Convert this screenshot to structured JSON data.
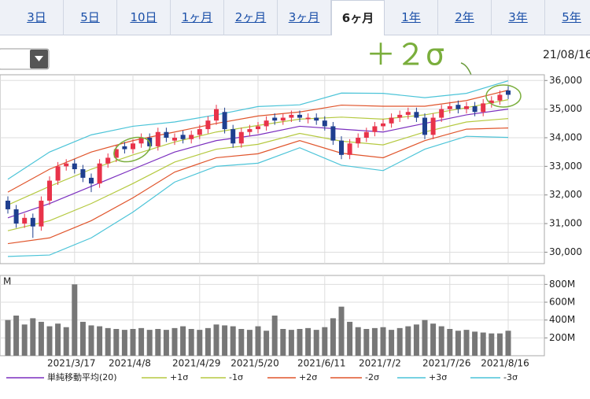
{
  "tabs": [
    "3日",
    "5日",
    "10日",
    "1ヶ月",
    "2ヶ月",
    "3ヶ月",
    "6ヶ月",
    "1年",
    "2年",
    "3年",
    "5年"
  ],
  "selected_tab": 6,
  "date": "21/08/16",
  "annotation": "＋２σ",
  "chart_data": [
    {
      "type": "candlestick",
      "categories": [
        null,
        null,
        null,
        null,
        null,
        null,
        null,
        null,
        "2021/3/17",
        null,
        null,
        null,
        null,
        null,
        null,
        "2021/4/8",
        null,
        null,
        null,
        null,
        null,
        null,
        null,
        "2021/4/29",
        null,
        null,
        null,
        null,
        null,
        null,
        "2021/5/20",
        null,
        null,
        null,
        null,
        null,
        null,
        null,
        "2021/6/11",
        null,
        null,
        null,
        null,
        null,
        null,
        "2021/7/2",
        null,
        null,
        null,
        null,
        null,
        null,
        null,
        "2021/7/26",
        null,
        null,
        null,
        null,
        null,
        null,
        "2021/8/16"
      ],
      "open": [
        31800,
        31500,
        31000,
        31200,
        30900,
        31800,
        32500,
        33000,
        33100,
        32900,
        32600,
        32400,
        33100,
        33300,
        33700,
        33600,
        33800,
        34000,
        33700,
        34200,
        33900,
        34100,
        33950,
        34100,
        34300,
        34600,
        34900,
        34300,
        33800,
        34200,
        34300,
        34400,
        34700,
        34600,
        34700,
        34800,
        34650,
        34700,
        34600,
        34400,
        33900,
        33400,
        33800,
        34000,
        34200,
        34400,
        34500,
        34700,
        34800,
        34900,
        34700,
        34100,
        34700,
        35000,
        35150,
        35000,
        35100,
        34900,
        35200,
        35300,
        35650
      ],
      "high": [
        31950,
        31650,
        31350,
        31350,
        31950,
        32650,
        33150,
        33250,
        33250,
        33050,
        32750,
        33250,
        33450,
        33750,
        33850,
        33950,
        34150,
        34150,
        34350,
        34350,
        34150,
        34250,
        34250,
        34450,
        34750,
        35150,
        35050,
        34450,
        34350,
        34450,
        34550,
        34750,
        34850,
        34850,
        34950,
        34950,
        34850,
        34850,
        34750,
        34550,
        34050,
        33950,
        34150,
        34350,
        34550,
        34650,
        34850,
        34950,
        35050,
        35050,
        34850,
        34850,
        35150,
        35250,
        35300,
        35250,
        35250,
        35350,
        35450,
        35650,
        35800
      ],
      "low": [
        31350,
        30850,
        30850,
        30500,
        30750,
        31650,
        32350,
        32850,
        32750,
        32450,
        32100,
        32250,
        32950,
        33150,
        33450,
        33450,
        33650,
        33550,
        33550,
        33850,
        33750,
        33800,
        33800,
        33950,
        34150,
        34450,
        34150,
        33650,
        33650,
        34050,
        34150,
        34250,
        34450,
        34450,
        34550,
        34550,
        34500,
        34450,
        34250,
        33750,
        33250,
        33250,
        33650,
        33850,
        34050,
        34250,
        34350,
        34550,
        34650,
        34550,
        33950,
        33950,
        34550,
        34850,
        34850,
        34850,
        34750,
        34750,
        35050,
        35150,
        35350
      ],
      "close": [
        31500,
        31000,
        31200,
        30900,
        31800,
        32500,
        33000,
        33100,
        32900,
        32600,
        32400,
        33100,
        33300,
        33600,
        33600,
        33800,
        34000,
        33700,
        34200,
        34000,
        34000,
        33950,
        34100,
        34300,
        34600,
        35000,
        34300,
        33800,
        34200,
        34300,
        34400,
        34600,
        34600,
        34700,
        34800,
        34700,
        34700,
        34600,
        34400,
        33900,
        33400,
        33800,
        34000,
        34200,
        34400,
        34500,
        34700,
        34800,
        34900,
        34700,
        34100,
        34700,
        35000,
        35100,
        35000,
        35100,
        34900,
        35200,
        35300,
        35500,
        35500
      ],
      "up_color": "#e8334a",
      "down_color": "#1f3f8f",
      "ylim": [
        29600,
        36200
      ],
      "yticks": [
        {
          "value": 30000,
          "label": "30,000"
        },
        {
          "value": 31000,
          "label": "31,000"
        },
        {
          "value": 32000,
          "label": "32,000"
        },
        {
          "value": 33000,
          "label": "33,000"
        },
        {
          "value": 34000,
          "label": "34,000"
        },
        {
          "value": 35000,
          "label": "35,000"
        },
        {
          "value": 36000,
          "label": "36,000"
        }
      ],
      "grid": true,
      "overlays": {
        "x": [
          0,
          5,
          10,
          15,
          20,
          25,
          30,
          35,
          40,
          45,
          50,
          55,
          60
        ],
        "series": [
          {
            "name": "単純移動平均(20)",
            "color": "#7b2fbf",
            "values": [
              31200,
              31700,
              32300,
              32900,
              33500,
              33900,
              34100,
              34400,
              34300,
              34200,
              34500,
              34800,
              35000
            ]
          },
          {
            "name": "+1σ",
            "color": "#b5c940",
            "values": [
              31650,
              32300,
              32900,
              33400,
              33850,
              34200,
              34430,
              34650,
              34720,
              34650,
              34800,
              35050,
              35330
            ]
          },
          {
            "name": "-1σ",
            "color": "#b5c940",
            "values": [
              30750,
              31100,
              31700,
              32400,
              33150,
              33600,
              33770,
              34150,
              33880,
              33750,
              34200,
              34550,
              34670
            ]
          },
          {
            "name": "+2σ",
            "color": "#e0552c",
            "values": [
              32100,
              32900,
              33500,
              33900,
              34200,
              34500,
              34760,
              34900,
              35140,
              35100,
              35100,
              35300,
              35660
            ]
          },
          {
            "name": "-2σ",
            "color": "#e0552c",
            "values": [
              30300,
              30500,
              31100,
              31900,
              32800,
              33300,
              33440,
              33900,
              33460,
              33300,
              33900,
              34300,
              34340
            ]
          },
          {
            "name": "+3σ",
            "color": "#4cc4d8",
            "values": [
              32550,
              33500,
              34100,
              34400,
              34550,
              34800,
              35090,
              35150,
              35560,
              35550,
              35400,
              35550,
              35990
            ]
          },
          {
            "name": "-3σ",
            "color": "#4cc4d8",
            "values": [
              29850,
              29900,
              30500,
              31400,
              32450,
              33000,
              33110,
              33650,
              33040,
              32850,
              33600,
              34050,
              34010
            ]
          }
        ]
      }
    },
    {
      "type": "bar",
      "label": "M",
      "color": "#777777",
      "values": [
        400000000,
        450000000,
        350000000,
        420000000,
        380000000,
        330000000,
        360000000,
        320000000,
        800000000,
        380000000,
        340000000,
        330000000,
        310000000,
        300000000,
        290000000,
        300000000,
        310000000,
        290000000,
        300000000,
        290000000,
        310000000,
        330000000,
        300000000,
        290000000,
        310000000,
        350000000,
        340000000,
        330000000,
        300000000,
        290000000,
        330000000,
        280000000,
        450000000,
        300000000,
        290000000,
        300000000,
        310000000,
        290000000,
        320000000,
        420000000,
        550000000,
        380000000,
        320000000,
        300000000,
        310000000,
        320000000,
        290000000,
        310000000,
        330000000,
        350000000,
        400000000,
        360000000,
        330000000,
        300000000,
        280000000,
        290000000,
        270000000,
        260000000,
        250000000,
        250000000,
        280000000
      ],
      "ylim": [
        0,
        900000000
      ],
      "yticks": [
        {
          "value": 200000000,
          "label": "200M"
        },
        {
          "value": 400000000,
          "label": "400M"
        },
        {
          "value": 600000000,
          "label": "600M"
        },
        {
          "value": 800000000,
          "label": "800M"
        }
      ]
    }
  ]
}
